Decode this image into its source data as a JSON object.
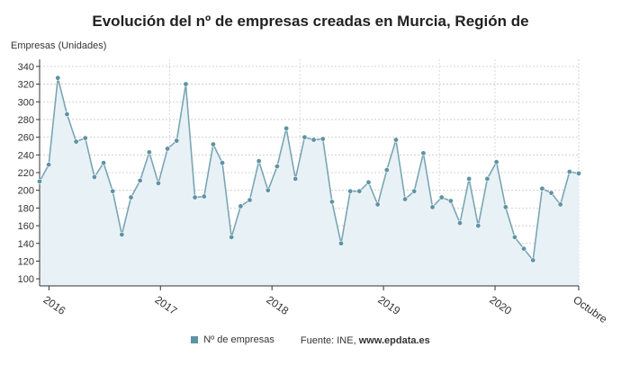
{
  "chart_data": {
    "type": "line",
    "title": "Evolución del nº de empresas creadas en Murcia, Región de",
    "ylabel": "Empresas (Unidades)",
    "xlabel": "",
    "ylim": [
      92,
      348
    ],
    "yticks": [
      100,
      120,
      140,
      160,
      180,
      200,
      220,
      240,
      260,
      280,
      300,
      320,
      340
    ],
    "x_start": "2015-12",
    "x_end": "2020-10",
    "x_tick_labels": [
      {
        "label": "2016",
        "date": "2016-01"
      },
      {
        "label": "2017",
        "date": "2017-01"
      },
      {
        "label": "2018",
        "date": "2018-01"
      },
      {
        "label": "2019",
        "date": "2019-01"
      },
      {
        "label": "2020",
        "date": "2020-01"
      },
      {
        "label": "Octubre",
        "date": "2020-10"
      }
    ],
    "year_separators": [
      "2017-02",
      "2018-04",
      "2019-07",
      "2020-01"
    ],
    "grid": true,
    "legend": "bottom",
    "colors": {
      "line": "#7aa6b4",
      "marker": "#5e93a5",
      "fill": "#e8f1f6",
      "grid": "#c8c8c8",
      "axis": "#333333",
      "separator": "#d0d0d0"
    },
    "series": [
      {
        "name": "Nº de empresas",
        "values": [
          210,
          229,
          327,
          286,
          255,
          259,
          215,
          231,
          199,
          150,
          192,
          211,
          243,
          208,
          247,
          256,
          320,
          192,
          193,
          252,
          231,
          147,
          182,
          189,
          233,
          200,
          227,
          270,
          213,
          260,
          257,
          258,
          187,
          140,
          199,
          199,
          209,
          184,
          223,
          257,
          190,
          199,
          242,
          181,
          192,
          188,
          163,
          213,
          160,
          213,
          232,
          181,
          147,
          134,
          121,
          202,
          197,
          184,
          221,
          219
        ]
      }
    ]
  },
  "footer": {
    "legend_label": "Nº de empresas",
    "source_prefix": "Fuente: INE, ",
    "source_site": "www.epdata.es"
  }
}
